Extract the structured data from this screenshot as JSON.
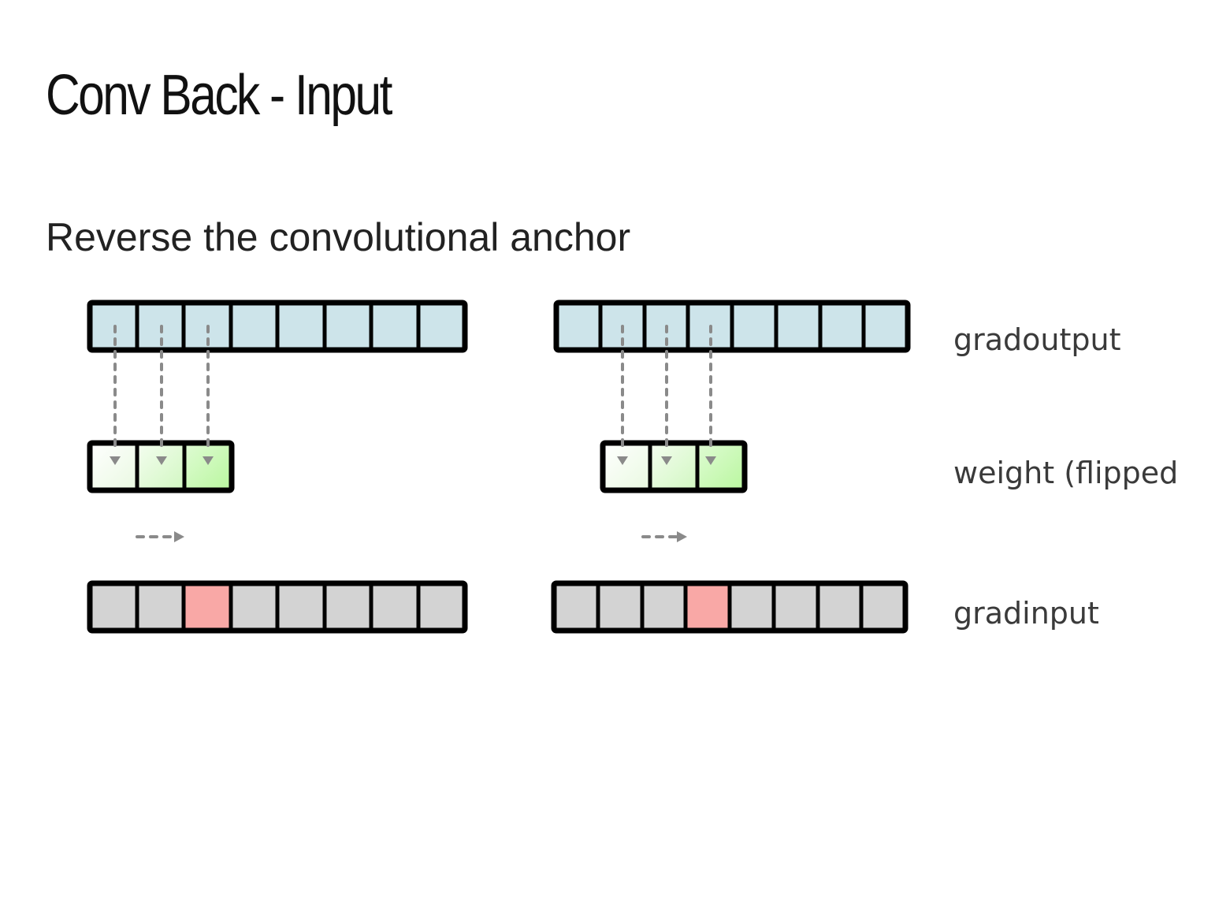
{
  "slide": {
    "title": "Conv Back - Input",
    "subtitle": "Reverse the convolutional anchor"
  },
  "diagram": {
    "row_labels": {
      "gradoutput": "gradoutput",
      "weight": "weight (flipped",
      "gradinput": "gradinput"
    },
    "colors": {
      "gradoutput_cell": "#cde4ea",
      "gradinput_cell": "#d3d3d3",
      "highlight_cell": "#f9a8a6",
      "weight_gradient_start": "#ffffff",
      "weight_gradient_end": "#b9f79e",
      "border": "#000000",
      "arrow": "#8a8a8a"
    },
    "panels": [
      {
        "gradoutput_cells": 8,
        "weight_cells": 3,
        "gradinput_cells": 8,
        "highlight_index": 2
      },
      {
        "gradoutput_cells": 8,
        "weight_cells": 3,
        "gradinput_cells": 8,
        "highlight_index": 3
      }
    ]
  }
}
